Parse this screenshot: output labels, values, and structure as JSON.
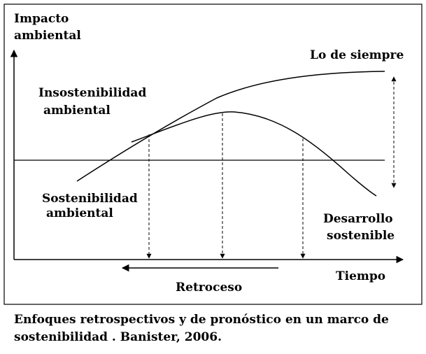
{
  "diagram": {
    "y_axis_label": [
      "Impacto",
      "ambiental"
    ],
    "x_axis_label": "Tiempo",
    "curve_business_as_usual_label": "Lo de siempre",
    "zone_unsustainable_label": [
      "Insostenibilidad",
      "ambiental"
    ],
    "zone_sustainable_label": [
      "Sostenibilidad",
      "ambiental"
    ],
    "curve_sustainable_label": [
      "Desarrollo",
      "sostenible"
    ],
    "backcasting_label": "Retroceso"
  },
  "caption": {
    "line1": "Enfoques retrospectivos y de pronóstico en un marco de",
    "line2": "sostenibilidad . Banister, 2006."
  }
}
